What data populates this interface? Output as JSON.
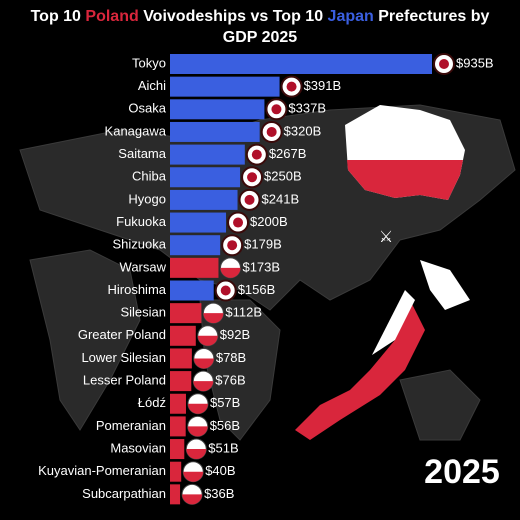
{
  "chart_data": {
    "type": "bar",
    "title_segments": [
      {
        "text": "Top 10 ",
        "color": "#ffffff"
      },
      {
        "text": "Poland",
        "color": "#d9263c"
      },
      {
        "text": " Voivodeships vs Top 10 ",
        "color": "#ffffff"
      },
      {
        "text": "Japan",
        "color": "#3a5fe0"
      },
      {
        "text": " Prefectures by",
        "color": "#ffffff"
      },
      {
        "text": "GDP 2025",
        "color": "#ffffff"
      }
    ],
    "annotation": "2025",
    "categories": [
      "Tokyo",
      "Aichi",
      "Osaka",
      "Kanagawa",
      "Saitama",
      "Chiba",
      "Hyogo",
      "Fukuoka",
      "Shizuoka",
      "Warsaw",
      "Hiroshima",
      "Silesian",
      "Greater Poland",
      "Lower Silesian",
      "Lesser Poland",
      "Łódź",
      "Pomeranian",
      "Masovian",
      "Kuyavian-Pomeranian",
      "Subcarpathian"
    ],
    "values": [
      935,
      391,
      337,
      320,
      267,
      250,
      241,
      200,
      179,
      173,
      156,
      112,
      92,
      78,
      76,
      57,
      56,
      51,
      40,
      36
    ],
    "value_labels": [
      "$935B",
      "$391B",
      "$337B",
      "$320B",
      "$267B",
      "$250B",
      "$241B",
      "$200B",
      "$179B",
      "$173B",
      "$156B",
      "$112B",
      "$92B",
      "$78B",
      "$76B",
      "$57B",
      "$56B",
      "$51B",
      "$40B",
      "$36B"
    ],
    "colors": [
      "#3a5fe0",
      "#3a5fe0",
      "#3a5fe0",
      "#3a5fe0",
      "#3a5fe0",
      "#3a5fe0",
      "#3a5fe0",
      "#3a5fe0",
      "#3a5fe0",
      "#d9263c",
      "#3a5fe0",
      "#d9263c",
      "#d9263c",
      "#d9263c",
      "#d9263c",
      "#d9263c",
      "#d9263c",
      "#d9263c",
      "#d9263c",
      "#d9263c"
    ]
  }
}
